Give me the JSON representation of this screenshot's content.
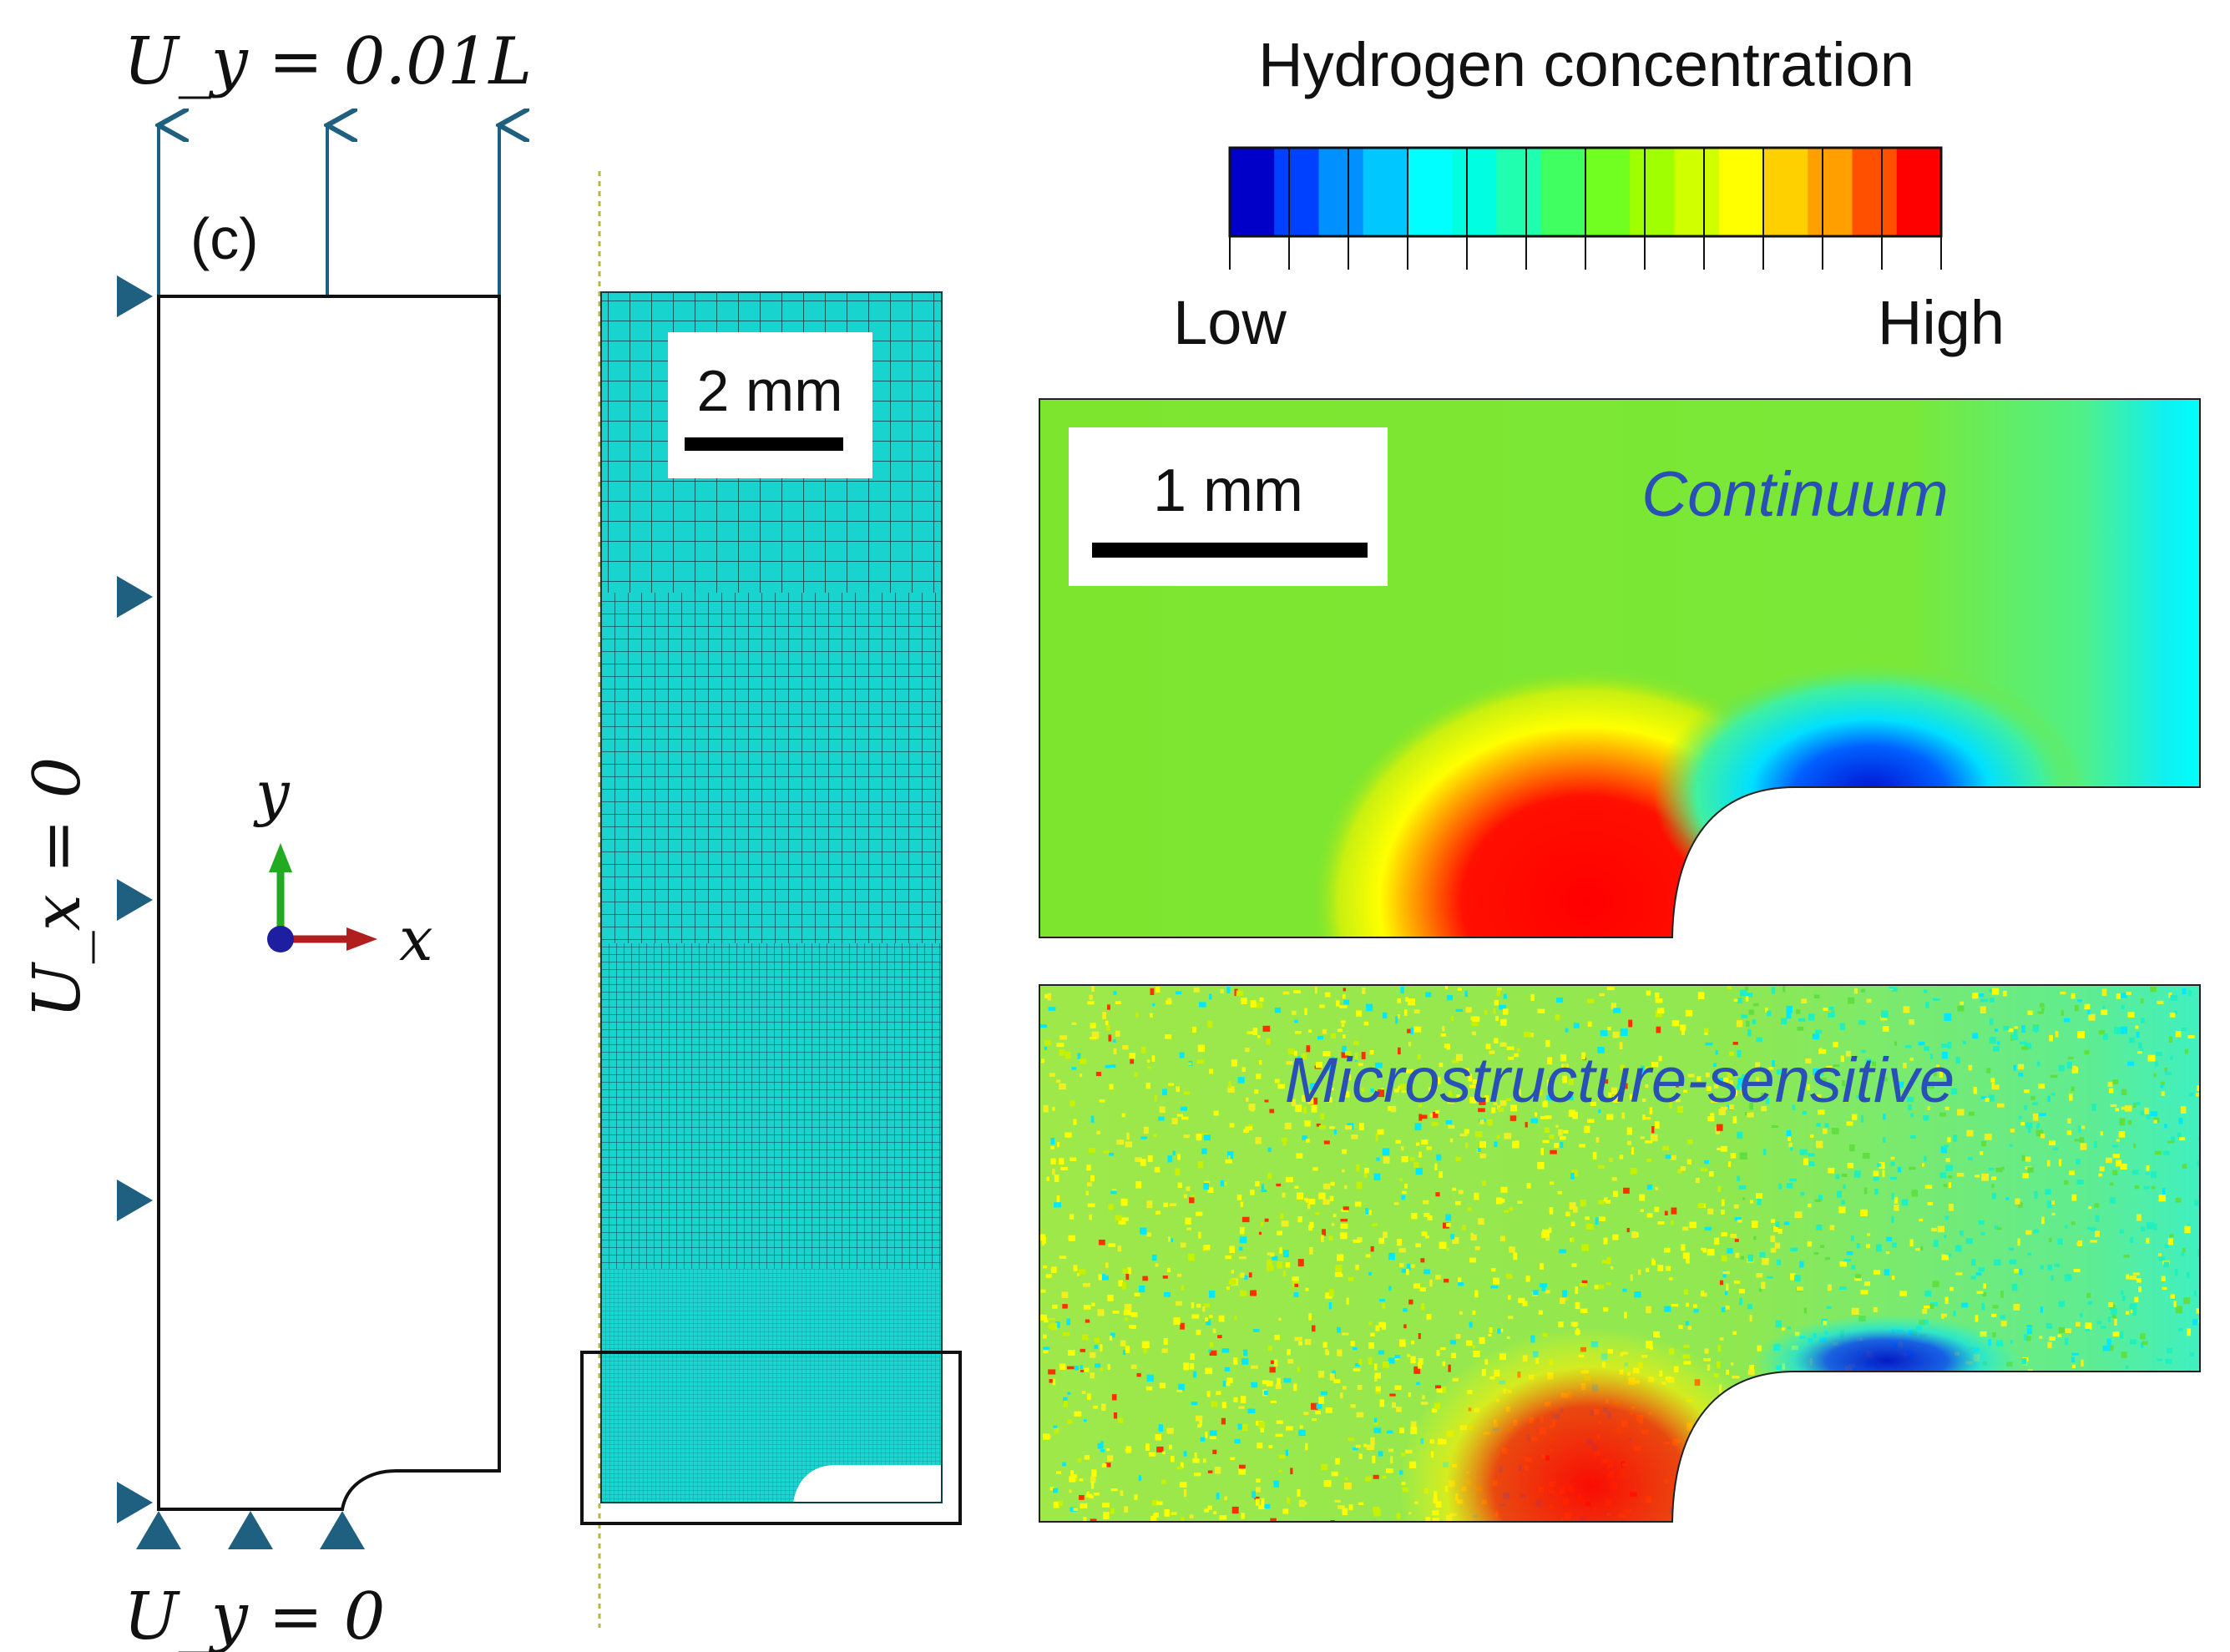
{
  "figure": {
    "panel_label": "(c)",
    "bc_top": "U_y = 0.01L",
    "bc_left": "U_x = 0",
    "bc_bottom": "U_y = 0",
    "axis_x": "x",
    "axis_y": "y",
    "mesh_scale_label": "2 mm",
    "colorbar_title": "Hydrogen concentration",
    "colorbar_low": "Low",
    "colorbar_high": "High",
    "colorbar_colors": [
      "#0000c8",
      "#0040ff",
      "#0090ff",
      "#00c8ff",
      "#00ffff",
      "#00ffe0",
      "#20ffb0",
      "#40ff60",
      "#70ff20",
      "#a0ff00",
      "#d0ff00",
      "#ffff00",
      "#ffd000",
      "#ffa000",
      "#ff5000",
      "#ff0000"
    ],
    "continuum_label": "Continuum",
    "continuum_scale_label": "1 mm",
    "micro_label": "Microstructure-sensitive",
    "colors": {
      "arrow_blue": "#1f5f80",
      "support_blue": "#1f5f80",
      "mesh_cyan": "#19d3cf",
      "mesh_line": "#0d3e3e",
      "field_green": "#7ee52e",
      "field_label_blue": "#2a50b8",
      "axis_green": "#22aa22",
      "axis_red": "#b01e1e",
      "axis_blue": "#1e1ea0"
    }
  }
}
